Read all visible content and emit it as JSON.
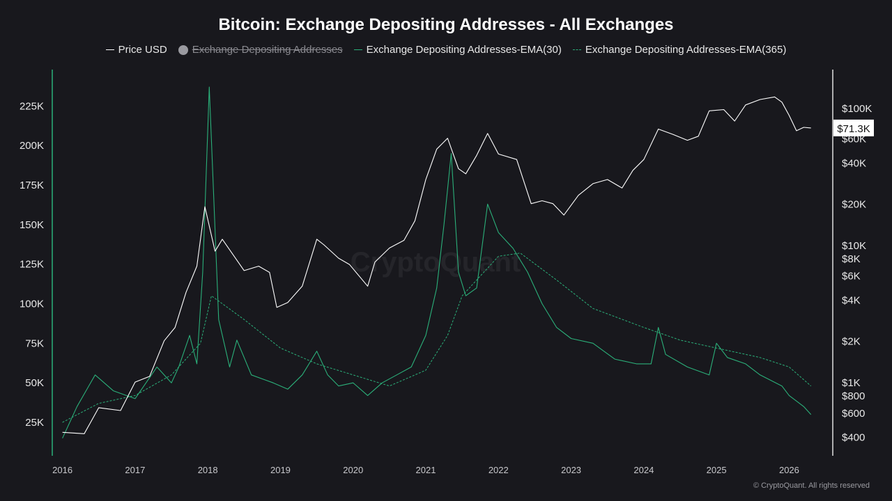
{
  "chart_data": {
    "type": "line",
    "title": "Bitcoin: Exchange Depositing Addresses - All Exchanges",
    "legend": [
      {
        "name": "Price USD",
        "style": "solid",
        "color": "#ffffff",
        "enabled": true
      },
      {
        "name": "Exchange Depositing Addresses",
        "style": "dot",
        "color": "#9a9aa0",
        "enabled": false
      },
      {
        "name": "Exchange Depositing Addresses-EMA(30)",
        "style": "solid",
        "color": "#2bb07a",
        "enabled": true
      },
      {
        "name": "Exchange Depositing Addresses-EMA(365)",
        "style": "dashed",
        "color": "#2bb07a",
        "enabled": true
      }
    ],
    "legend_placement": "top-center",
    "grid": false,
    "x_ticks": [
      "2016",
      "2017",
      "2018",
      "2019",
      "2020",
      "2021",
      "2022",
      "2023",
      "2024",
      "2025",
      "2026"
    ],
    "xlim": [
      2015.86,
      2026.6
    ],
    "y_left": {
      "ticks": [
        "25K",
        "50K",
        "75K",
        "100K",
        "125K",
        "150K",
        "175K",
        "200K",
        "225K"
      ],
      "tick_values": [
        25000,
        50000,
        75000,
        100000,
        125000,
        150000,
        175000,
        200000,
        225000
      ],
      "range": [
        3900,
        248000
      ],
      "scale": "linear"
    },
    "y_right": {
      "ticks": [
        "$100K",
        "$60K",
        "$40K",
        "$20K",
        "$10K",
        "$8K",
        "$6K",
        "$4K",
        "$2K",
        "$1K",
        "$800",
        "$600",
        "$400"
      ],
      "tick_values": [
        100000,
        60000,
        40000,
        20000,
        10000,
        8000,
        6000,
        4000,
        2000,
        1000,
        800,
        600,
        400
      ],
      "range": [
        290,
        190000
      ],
      "scale": "log"
    },
    "current_price_label": "$71.3K",
    "series": [
      {
        "name": "Price USD",
        "axis": "right",
        "points": [
          [
            2016.0,
            430
          ],
          [
            2016.3,
            420
          ],
          [
            2016.5,
            650
          ],
          [
            2016.8,
            620
          ],
          [
            2017.0,
            1000
          ],
          [
            2017.2,
            1100
          ],
          [
            2017.4,
            2000
          ],
          [
            2017.55,
            2500
          ],
          [
            2017.7,
            4500
          ],
          [
            2017.85,
            7000
          ],
          [
            2017.96,
            19000
          ],
          [
            2018.1,
            9000
          ],
          [
            2018.2,
            11000
          ],
          [
            2018.5,
            6500
          ],
          [
            2018.7,
            7000
          ],
          [
            2018.85,
            6300
          ],
          [
            2018.95,
            3500
          ],
          [
            2019.1,
            3800
          ],
          [
            2019.3,
            5000
          ],
          [
            2019.5,
            11000
          ],
          [
            2019.6,
            10000
          ],
          [
            2019.8,
            8000
          ],
          [
            2019.95,
            7200
          ],
          [
            2020.2,
            5000
          ],
          [
            2020.3,
            7500
          ],
          [
            2020.5,
            9500
          ],
          [
            2020.7,
            10800
          ],
          [
            2020.85,
            15000
          ],
          [
            2021.0,
            30000
          ],
          [
            2021.15,
            50000
          ],
          [
            2021.3,
            60000
          ],
          [
            2021.45,
            36000
          ],
          [
            2021.55,
            33000
          ],
          [
            2021.7,
            45000
          ],
          [
            2021.85,
            65000
          ],
          [
            2022.0,
            46000
          ],
          [
            2022.25,
            42000
          ],
          [
            2022.45,
            20000
          ],
          [
            2022.6,
            21000
          ],
          [
            2022.75,
            20000
          ],
          [
            2022.9,
            16500
          ],
          [
            2023.1,
            23000
          ],
          [
            2023.3,
            28000
          ],
          [
            2023.5,
            30000
          ],
          [
            2023.7,
            26000
          ],
          [
            2023.85,
            35000
          ],
          [
            2024.0,
            42000
          ],
          [
            2024.2,
            70000
          ],
          [
            2024.4,
            64000
          ],
          [
            2024.6,
            58000
          ],
          [
            2024.75,
            62000
          ],
          [
            2024.9,
            95000
          ],
          [
            2025.1,
            97000
          ],
          [
            2025.25,
            80000
          ],
          [
            2025.4,
            105000
          ],
          [
            2025.6,
            115000
          ],
          [
            2025.8,
            120000
          ],
          [
            2025.9,
            110000
          ],
          [
            2026.0,
            88000
          ],
          [
            2026.1,
            68000
          ],
          [
            2026.2,
            72000
          ],
          [
            2026.3,
            71300
          ]
        ]
      },
      {
        "name": "Exchange Depositing Addresses-EMA(30)",
        "axis": "left",
        "points": [
          [
            2016.0,
            15000
          ],
          [
            2016.2,
            35000
          ],
          [
            2016.45,
            55000
          ],
          [
            2016.7,
            45000
          ],
          [
            2017.0,
            40000
          ],
          [
            2017.3,
            60000
          ],
          [
            2017.5,
            50000
          ],
          [
            2017.6,
            60000
          ],
          [
            2017.75,
            80000
          ],
          [
            2017.85,
            62000
          ],
          [
            2017.93,
            120000
          ],
          [
            2018.02,
            237000
          ],
          [
            2018.15,
            90000
          ],
          [
            2018.3,
            60000
          ],
          [
            2018.4,
            77000
          ],
          [
            2018.6,
            55000
          ],
          [
            2018.9,
            50000
          ],
          [
            2019.1,
            46000
          ],
          [
            2019.3,
            55000
          ],
          [
            2019.5,
            70000
          ],
          [
            2019.65,
            55000
          ],
          [
            2019.8,
            48000
          ],
          [
            2020.0,
            50000
          ],
          [
            2020.2,
            42000
          ],
          [
            2020.4,
            50000
          ],
          [
            2020.6,
            55000
          ],
          [
            2020.8,
            60000
          ],
          [
            2021.0,
            80000
          ],
          [
            2021.15,
            110000
          ],
          [
            2021.25,
            150000
          ],
          [
            2021.35,
            195000
          ],
          [
            2021.45,
            120000
          ],
          [
            2021.55,
            105000
          ],
          [
            2021.7,
            110000
          ],
          [
            2021.85,
            163000
          ],
          [
            2022.0,
            145000
          ],
          [
            2022.2,
            135000
          ],
          [
            2022.4,
            120000
          ],
          [
            2022.6,
            100000
          ],
          [
            2022.8,
            85000
          ],
          [
            2023.0,
            78000
          ],
          [
            2023.3,
            75000
          ],
          [
            2023.6,
            65000
          ],
          [
            2023.9,
            62000
          ],
          [
            2024.1,
            62000
          ],
          [
            2024.2,
            85000
          ],
          [
            2024.3,
            68000
          ],
          [
            2024.6,
            60000
          ],
          [
            2024.9,
            55000
          ],
          [
            2025.0,
            75000
          ],
          [
            2025.15,
            66000
          ],
          [
            2025.4,
            62000
          ],
          [
            2025.6,
            55000
          ],
          [
            2025.9,
            48000
          ],
          [
            2026.0,
            42000
          ],
          [
            2026.2,
            35000
          ],
          [
            2026.3,
            30000
          ]
        ]
      },
      {
        "name": "Exchange Depositing Addresses-EMA(365)",
        "axis": "left",
        "points": [
          [
            2016.0,
            25000
          ],
          [
            2016.5,
            37000
          ],
          [
            2017.0,
            42000
          ],
          [
            2017.5,
            55000
          ],
          [
            2017.9,
            75000
          ],
          [
            2018.05,
            105000
          ],
          [
            2018.5,
            90000
          ],
          [
            2019.0,
            72000
          ],
          [
            2019.5,
            62000
          ],
          [
            2020.0,
            55000
          ],
          [
            2020.5,
            48000
          ],
          [
            2021.0,
            58000
          ],
          [
            2021.3,
            80000
          ],
          [
            2021.5,
            105000
          ],
          [
            2022.0,
            130000
          ],
          [
            2022.3,
            132000
          ],
          [
            2022.8,
            115000
          ],
          [
            2023.3,
            97000
          ],
          [
            2024.0,
            85000
          ],
          [
            2024.5,
            77000
          ],
          [
            2025.0,
            72000
          ],
          [
            2025.6,
            66000
          ],
          [
            2026.0,
            60000
          ],
          [
            2026.3,
            48000
          ]
        ]
      }
    ]
  },
  "watermark": "CryptoQuant",
  "footer": "© CryptoQuant. All rights reserved"
}
